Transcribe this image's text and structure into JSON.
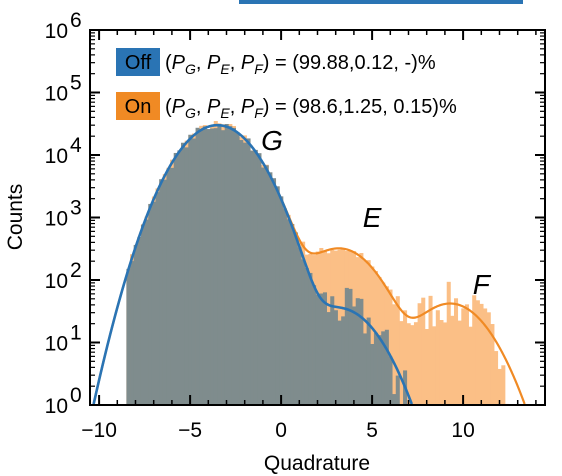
{
  "chart_data": {
    "type": "bar",
    "xlabel": "Quadrature",
    "ylabel": "Counts",
    "xlim": [
      -10.5,
      14.5
    ],
    "ylim_log10": [
      0,
      6
    ],
    "scale_y": "log",
    "x_ticks": [
      -10,
      -5,
      0,
      5,
      10
    ],
    "x_tick_labels": [
      "−10",
      "−5",
      "0",
      "5",
      "10"
    ],
    "y_tick_exponents": [
      0,
      1,
      2,
      3,
      4,
      5,
      6
    ],
    "y_tick_labels": [
      "10",
      "10",
      "10",
      "10",
      "10",
      "10",
      "10"
    ],
    "legend_placement": "top-left",
    "colors": {
      "off_line": "#2a74b4",
      "off_fill": "#7f8c8d",
      "on_line": "#f08a24",
      "on_fill": "#fbbf86"
    },
    "series": [
      {
        "name": "Off",
        "legend_label": "Off",
        "legend_text": "(P_G, P_E, P_F) = (99.88,0.12, -)%",
        "components": [
          {
            "amp": 30000,
            "mu": -3.5,
            "sigma": 1.5
          },
          {
            "amp": 35,
            "mu": 3.2,
            "sigma": 1.5
          }
        ],
        "hist_range": [
          -8.5,
          6.8
        ]
      },
      {
        "name": "On",
        "legend_label": "On",
        "legend_text": "(P_G, P_E, P_F) = (98.6,1.25, 0.15)%",
        "components": [
          {
            "amp": 30000,
            "mu": -3.5,
            "sigma": 1.5
          },
          {
            "amp": 320,
            "mu": 3.2,
            "sigma": 1.5
          },
          {
            "amp": 42,
            "mu": 9.3,
            "sigma": 1.5
          }
        ],
        "hist_range": [
          -8.5,
          12.5
        ]
      }
    ],
    "annotations": [
      {
        "text": "G",
        "x": -0.5,
        "y": 12000
      },
      {
        "text": "E",
        "x": 5.0,
        "y": 700
      },
      {
        "text": "F",
        "x": 11.0,
        "y": 60
      }
    ]
  }
}
